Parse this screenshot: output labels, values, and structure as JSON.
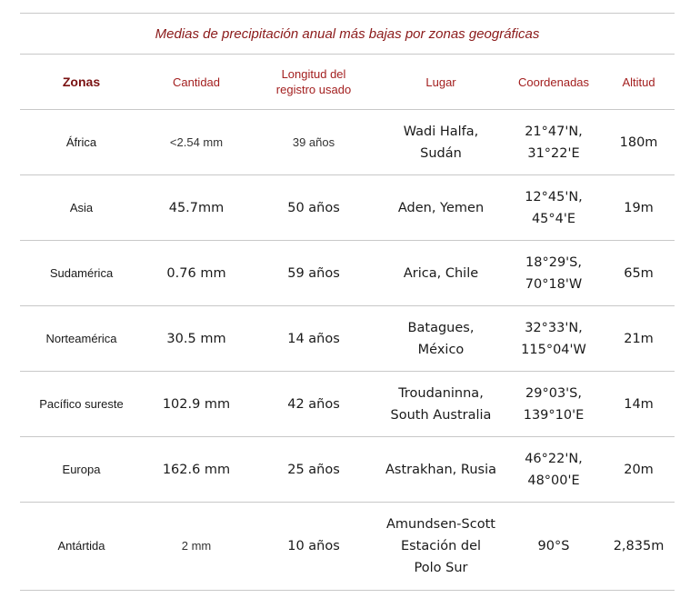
{
  "title": "Medias de precipitación anual más bajas por zonas geográficas",
  "headers": {
    "zonas": "Zonas",
    "cantidad": "Cantidad",
    "longitud_l1": "Longitud del",
    "longitud_l2": "registro usado",
    "lugar": "Lugar",
    "coordenadas": "Coordenadas",
    "altitud": "Altitud"
  },
  "rows": [
    {
      "zona": "África",
      "cantidad": "<2.54 mm",
      "longitud": "39 años",
      "lugar_l1": "Wadi Halfa,",
      "lugar_l2": "Sudán",
      "lugar_l3": "",
      "coord_l1": "21°47'N,",
      "coord_l2": "31°22'E",
      "altitud": "180m"
    },
    {
      "zona": "Asia",
      "cantidad": "45.7mm",
      "longitud": "50 años",
      "lugar_l1": "Aden, Yemen",
      "lugar_l2": "",
      "lugar_l3": "",
      "coord_l1": "12°45'N,",
      "coord_l2": "45°4'E",
      "altitud": "19m"
    },
    {
      "zona": "Sudamérica",
      "cantidad": "0.76 mm",
      "longitud": "59 años",
      "lugar_l1": "Arica, Chile",
      "lugar_l2": "",
      "lugar_l3": "",
      "coord_l1": "18°29'S,",
      "coord_l2": "70°18'W",
      "altitud": "65m"
    },
    {
      "zona": "Norteamérica",
      "cantidad": "30.5 mm",
      "longitud": "14 años",
      "lugar_l1": "Batagues,",
      "lugar_l2": "México",
      "lugar_l3": "",
      "coord_l1": "32°33'N,",
      "coord_l2": "115°04'W",
      "altitud": "21m"
    },
    {
      "zona": "Pacífico sureste",
      "cantidad": "102.9 mm",
      "longitud": "42 años",
      "lugar_l1": "Troudaninna,",
      "lugar_l2": "South Australia",
      "lugar_l3": "",
      "coord_l1": "29°03'S,",
      "coord_l2": "139°10'E",
      "altitud": "14m"
    },
    {
      "zona": "Europa",
      "cantidad": "162.6 mm",
      "longitud": "25 años",
      "lugar_l1": "Astrakhan, Rusia",
      "lugar_l2": "",
      "lugar_l3": "",
      "coord_l1": "46°22'N,",
      "coord_l2": "48°00'E",
      "altitud": "20m"
    },
    {
      "zona": "Antártida",
      "cantidad": "2 mm",
      "longitud": "10 años",
      "lugar_l1": "Amundsen-Scott",
      "lugar_l2": "Estación del",
      "lugar_l3": "Polo Sur",
      "coord_l1": "90°S",
      "coord_l2": "",
      "altitud": "2,835m"
    }
  ]
}
